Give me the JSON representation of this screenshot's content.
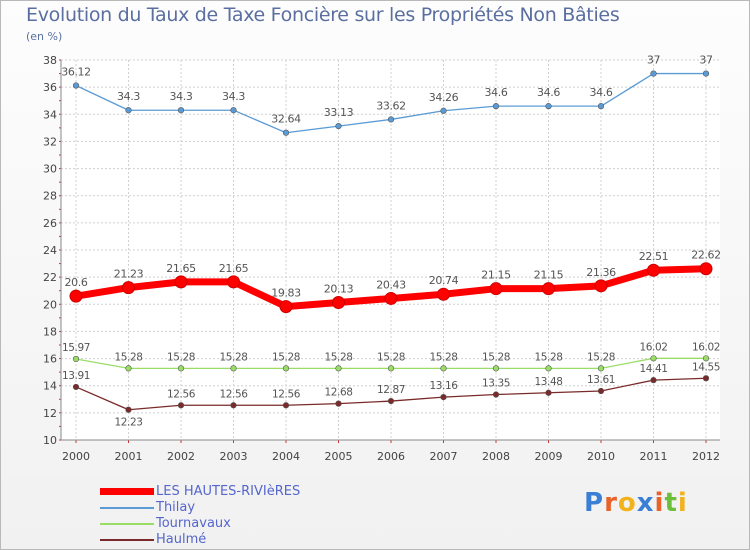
{
  "header": {
    "title": "Evolution du Taux de Taxe Foncière sur les Propriétés Non Bâties",
    "unit": "(en %)"
  },
  "chart_data": {
    "type": "line",
    "title": "Evolution du Taux de Taxe Foncière sur les Propriétés Non Bâties",
    "ylabel": "(en %)",
    "xlabel": "",
    "ylim": [
      10,
      38
    ],
    "yticks": [
      10,
      12,
      14,
      16,
      18,
      20,
      22,
      24,
      26,
      28,
      30,
      32,
      34,
      36,
      38
    ],
    "grid": true,
    "legend_position": "bottom-left",
    "x": [
      "2000",
      "2001",
      "2002",
      "2003",
      "2004",
      "2005",
      "2006",
      "2007",
      "2008",
      "2009",
      "2010",
      "2011",
      "2012"
    ],
    "series": [
      {
        "name": "LES HAUTES-RIVIèRES",
        "color": "#ff0000",
        "values": [
          20.6,
          21.23,
          21.65,
          21.65,
          19.83,
          20.13,
          20.43,
          20.74,
          21.15,
          21.15,
          21.36,
          22.51,
          22.62
        ],
        "labels": [
          "20.6",
          "21.23",
          "21.65",
          "21.65",
          "19.83",
          "20.13",
          "20.43",
          "20.74",
          "21.15",
          "21.15",
          "21.36",
          "22.51",
          "22.62"
        ]
      },
      {
        "name": "Thilay",
        "color": "#5b9bd5",
        "values": [
          36.12,
          34.3,
          34.3,
          34.3,
          32.64,
          33.13,
          33.62,
          34.26,
          34.6,
          34.6,
          34.6,
          37,
          37
        ],
        "labels": [
          "36.12",
          "34.3",
          "34.3",
          "34.3",
          "32.64",
          "33.13",
          "33.62",
          "34.26",
          "34.6",
          "34.6",
          "34.6",
          "37",
          "37"
        ]
      },
      {
        "name": "Tournavaux",
        "color": "#99dd66",
        "values": [
          15.97,
          15.28,
          15.28,
          15.28,
          15.28,
          15.28,
          15.28,
          15.28,
          15.28,
          15.28,
          15.28,
          16.02,
          16.02
        ],
        "labels": [
          "15.97",
          "15.28",
          "15.28",
          "15.28",
          "15.28",
          "15.28",
          "15.28",
          "15.28",
          "15.28",
          "15.28",
          "15.28",
          "16.02",
          "16.02"
        ]
      },
      {
        "name": "Haulmé",
        "color": "#7a2a2a",
        "values": [
          13.91,
          12.23,
          12.56,
          12.56,
          12.56,
          12.68,
          12.87,
          13.16,
          13.35,
          13.48,
          13.61,
          14.41,
          14.55
        ],
        "labels": [
          "13.91",
          "12.23",
          "12.56",
          "12.56",
          "12.56",
          "12.68",
          "12.87",
          "13.16",
          "13.35",
          "13.48",
          "13.61",
          "14.41",
          "14.55"
        ]
      }
    ]
  },
  "logo": {
    "letters": [
      "P",
      "r",
      "o",
      "x",
      "i",
      "t",
      "i"
    ],
    "colors": [
      "#3a7fd5",
      "#e8622a",
      "#f2b21c",
      "#3a7fd5",
      "#e8622a",
      "#6bbf3a",
      "#f2b21c"
    ]
  }
}
